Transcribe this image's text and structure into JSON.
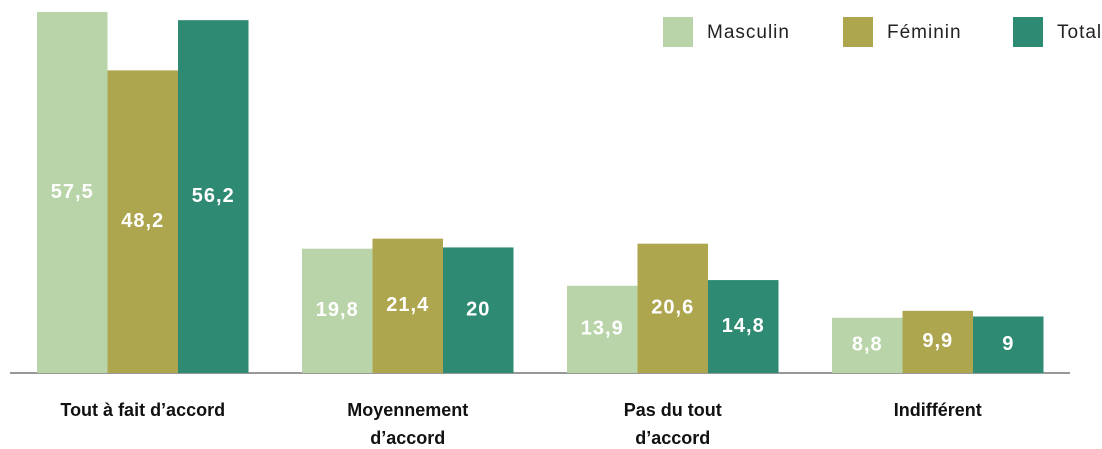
{
  "chart_data": {
    "type": "bar",
    "categories": [
      "Tout à fait d’accord",
      "Moyennement d’accord",
      "Pas du tout d’accord",
      "Indifférent"
    ],
    "series": [
      {
        "name": "Masculin",
        "color": "#b9d4a9",
        "values": [
          57.5,
          19.8,
          13.9,
          8.8
        ],
        "value_labels": [
          "57,5",
          "19,8",
          "13,9",
          "8,8"
        ]
      },
      {
        "name": "Féminin",
        "color": "#ada64e",
        "values": [
          48.2,
          21.4,
          20.6,
          9.9
        ],
        "value_labels": [
          "48,2",
          "21,4",
          "20,6",
          "9,9"
        ]
      },
      {
        "name": "Total",
        "color": "#2e8a72",
        "values": [
          56.2,
          20,
          14.8,
          9
        ],
        "value_labels": [
          "56,2",
          "20",
          "14,8",
          "9"
        ]
      }
    ],
    "ylim": [
      0,
      57.5
    ],
    "legend": "top-right"
  }
}
